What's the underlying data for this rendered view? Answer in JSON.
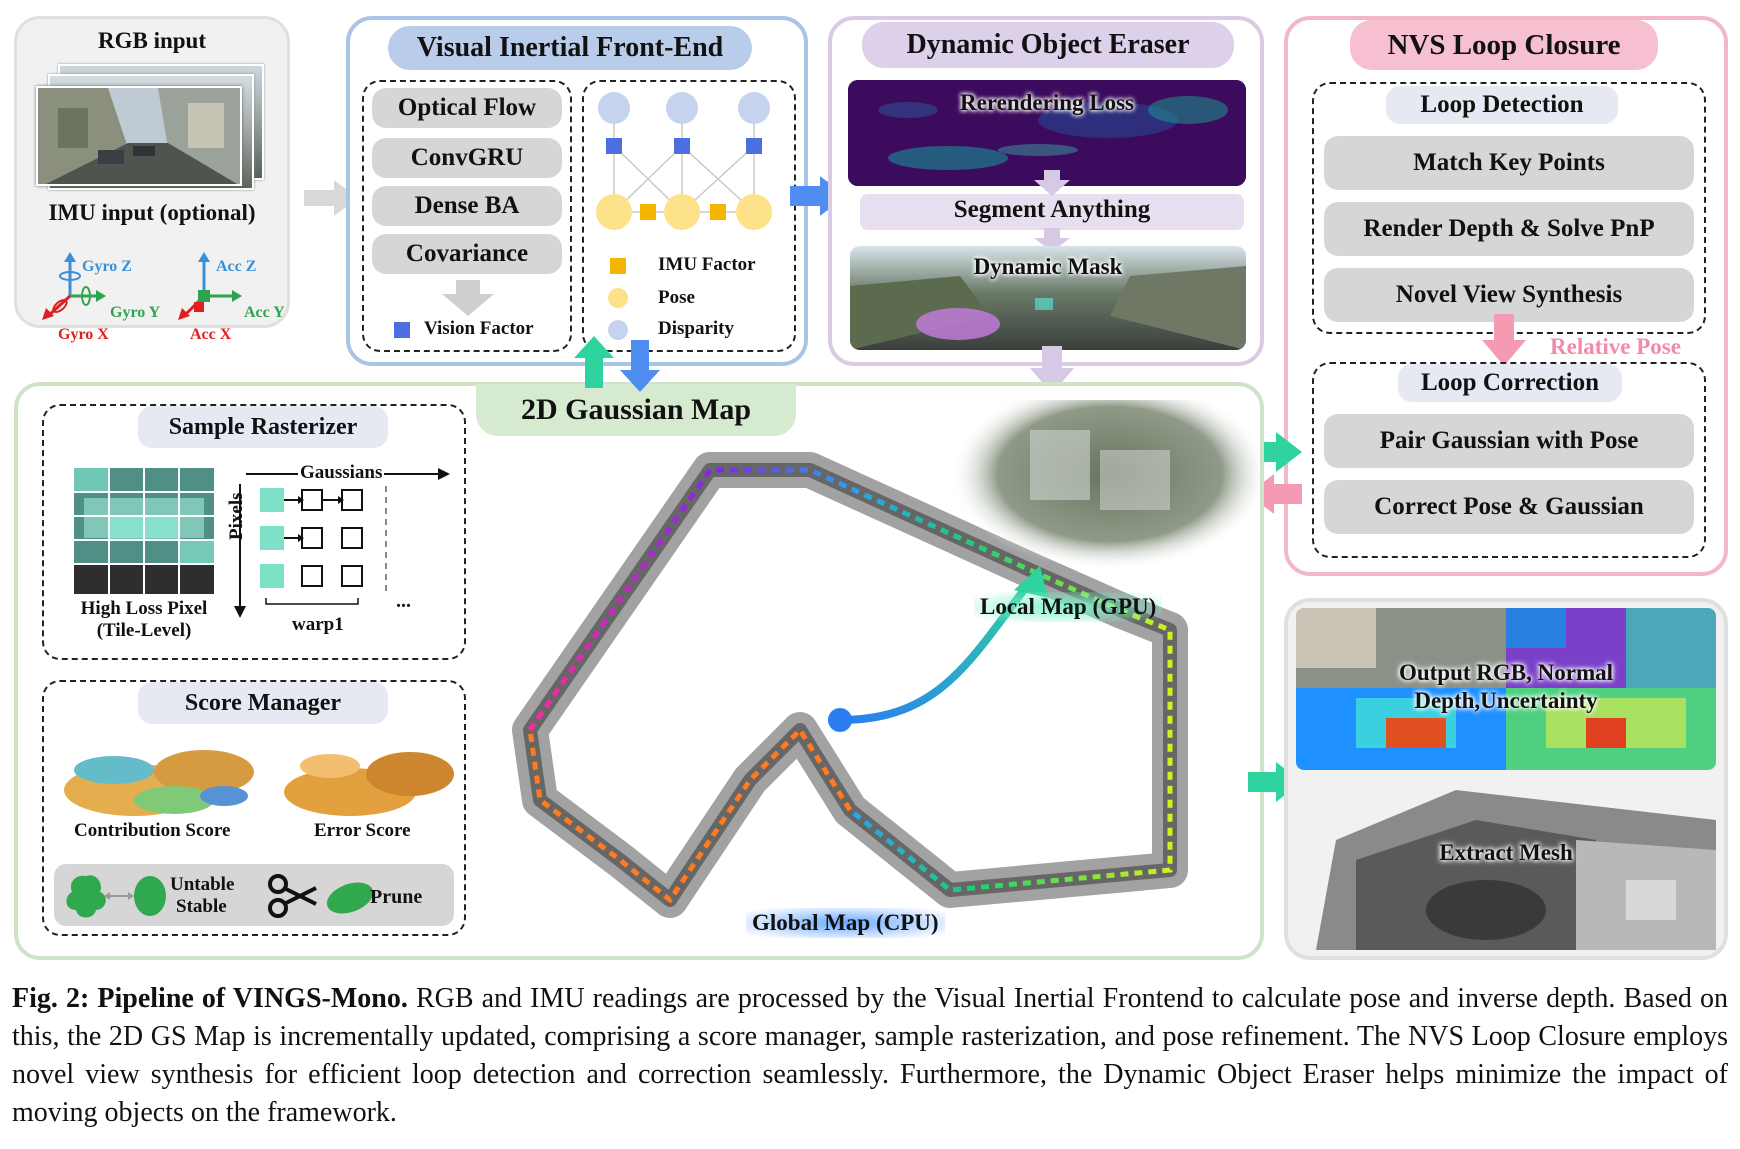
{
  "rgb_input": {
    "title": "RGB input"
  },
  "imu_input": {
    "title": "IMU input (optional)",
    "axes": {
      "gyro_z": "Gyro Z",
      "gyro_y": "Gyro Y",
      "gyro_x": "Gyro X",
      "acc_z": "Acc Z",
      "acc_y": "Acc Y",
      "acc_x": "Acc X"
    }
  },
  "frontend": {
    "title": "Visual Inertial Front-End",
    "steps": [
      "Optical Flow",
      "ConvGRU",
      "Dense BA",
      "Covariance"
    ],
    "vision_factor": "Vision Factor",
    "legend": {
      "imu_factor": "IMU Factor",
      "pose": "Pose",
      "disparity": "Disparity"
    }
  },
  "eraser": {
    "title": "Dynamic Object Eraser",
    "rerendering_loss": "Rerendering Loss",
    "segment_anything": "Segment Anything",
    "dynamic_mask": "Dynamic Mask"
  },
  "loop": {
    "title": "NVS Loop Closure",
    "detection_title": "Loop Detection",
    "detection_steps": [
      "Match Key Points",
      "Render Depth & Solve PnP",
      "Novel View Synthesis"
    ],
    "relative_pose": "Relative Pose",
    "correction_title": "Loop Correction",
    "correction_steps": [
      "Pair Gaussian with Pose",
      "Correct Pose & Gaussian"
    ]
  },
  "gaussian_map": {
    "title": "2D Gaussian Map",
    "local_map": "Local Map (GPU)",
    "global_map": "Global Map (CPU)"
  },
  "sample_rasterizer": {
    "title": "Sample Rasterizer",
    "gaussians": "Gaussians",
    "pixels": "Pixels",
    "warp": "warp1",
    "ellipsis": "...",
    "high_loss_line1": "High Loss Pixel",
    "high_loss_line2": "(Tile-Level)"
  },
  "score_manager": {
    "title": "Score Manager",
    "contribution": "Contribution Score",
    "error": "Error Score",
    "untable": "Untable",
    "stable": "Stable",
    "prune": "Prune"
  },
  "outputs": {
    "rgb_line1": "Output RGB, Normal",
    "rgb_line2": "Depth,Uncertainty",
    "mesh": "Extract Mesh"
  },
  "caption": {
    "label": "Fig. 2: Pipeline of VINGS-Mono.",
    "text": "RGB and IMU readings are processed by the Visual Inertial Frontend to calculate pose and inverse depth. Based on this, the 2D GS Map is incrementally updated, comprising a score manager, sample rasterization, and pose refinement. The NVS Loop Closure employs novel view synthesis for efficient loop detection and correction seamlessly. Furthermore, the Dynamic Object Eraser helps minimize the impact of moving objects on the framework."
  },
  "colors": {
    "frontend_border": "#a9c4e6",
    "frontend_tab": "#b9cdea",
    "eraser_border": "#d9cbe6",
    "eraser_tab": "#ddd0ea",
    "loop_border": "#f3b8c8",
    "loop_tab": "#f6c0d0",
    "map_border": "#cfe3c9",
    "map_tab": "#d6ead0",
    "arrow_green": "#2fd3a0",
    "arrow_blue": "#4f8ef0",
    "arrow_pink": "#f59ab3"
  }
}
